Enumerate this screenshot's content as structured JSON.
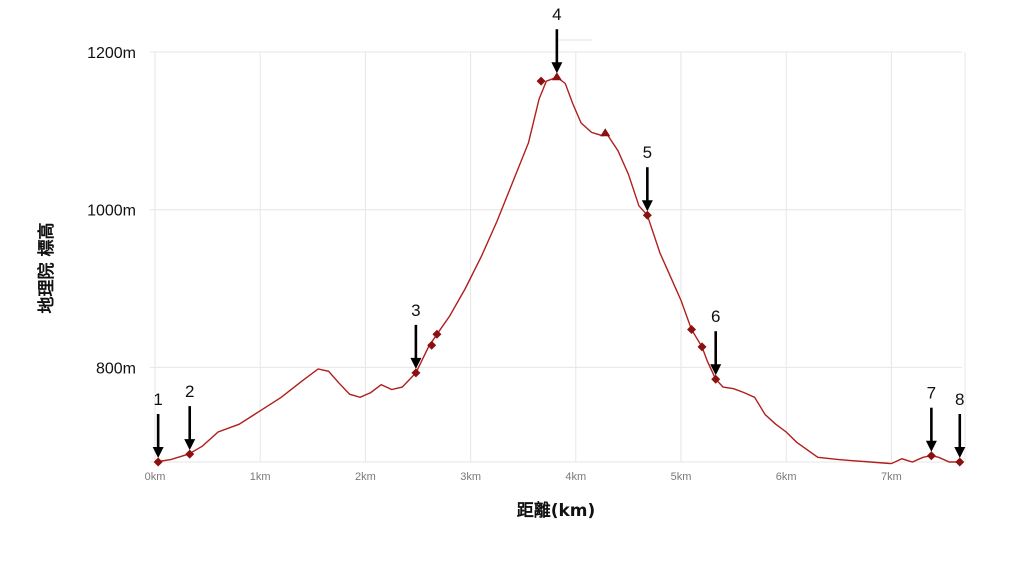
{
  "chart_data": {
    "type": "line",
    "title": "",
    "xlabel": "距離(km)",
    "ylabel": "地理院 標高",
    "xlim": [
      0,
      7.7
    ],
    "ylim": [
      680,
      1200
    ],
    "x_ticks": [
      0,
      1,
      2,
      3,
      4,
      5,
      6,
      7
    ],
    "x_tick_labels": [
      "0km",
      "1km",
      "2km",
      "3km",
      "4km",
      "5km",
      "6km",
      "7km"
    ],
    "y_ticks": [
      800,
      1000,
      1200
    ],
    "y_tick_labels": [
      "800m",
      "1000m",
      "1200m"
    ],
    "grid": true,
    "line_color": "#b01e1e",
    "marker_color": "#8b1010",
    "series": [
      {
        "x": [
          0,
          0.15,
          0.32,
          0.45,
          0.6,
          0.8,
          1.0,
          1.2,
          1.4,
          1.55,
          1.65,
          1.75,
          1.85,
          1.95,
          2.05,
          2.15,
          2.25,
          2.35,
          2.48,
          2.6,
          2.68,
          2.8,
          2.95,
          3.1,
          3.25,
          3.4,
          3.55,
          3.65,
          3.72,
          3.82,
          3.9,
          3.97,
          4.05,
          4.15,
          4.25,
          4.3,
          4.4,
          4.5,
          4.6,
          4.68,
          4.8,
          4.9,
          5.0,
          5.1,
          5.2,
          5.25,
          5.33,
          5.4,
          5.5,
          5.6,
          5.7,
          5.8,
          5.9,
          6.0,
          6.1,
          6.3,
          6.5,
          6.6,
          6.8,
          7.0,
          7.1,
          7.2,
          7.3,
          7.38,
          7.45,
          7.55,
          7.65
        ],
        "y": [
          680,
          683,
          690,
          700,
          718,
          728,
          745,
          762,
          783,
          798,
          795,
          780,
          766,
          762,
          768,
          778,
          772,
          775,
          793,
          826,
          842,
          865,
          900,
          940,
          985,
          1035,
          1085,
          1140,
          1163,
          1168,
          1160,
          1135,
          1110,
          1098,
          1094,
          1095,
          1075,
          1045,
          1005,
          993,
          945,
          915,
          885,
          848,
          826,
          808,
          785,
          775,
          773,
          768,
          762,
          740,
          728,
          718,
          705,
          686,
          683,
          682,
          680,
          678,
          684,
          680,
          686,
          688,
          686,
          680,
          680
        ]
      }
    ],
    "waypoints": [
      {
        "label": "1",
        "x": 0.03,
        "y": 680
      },
      {
        "label": "2",
        "x": 0.33,
        "y": 690
      },
      {
        "label": "3",
        "x": 2.48,
        "y": 793
      },
      {
        "label": "4",
        "x": 3.82,
        "y": 1168
      },
      {
        "label": "5",
        "x": 4.68,
        "y": 993
      },
      {
        "label": "6",
        "x": 5.33,
        "y": 785
      },
      {
        "label": "7",
        "x": 7.38,
        "y": 688
      },
      {
        "label": "8",
        "x": 7.65,
        "y": 680
      }
    ],
    "markers": [
      {
        "shape": "diamond",
        "x": 0.03,
        "y": 680
      },
      {
        "shape": "diamond",
        "x": 0.33,
        "y": 690
      },
      {
        "shape": "diamond",
        "x": 2.48,
        "y": 793
      },
      {
        "shape": "diamond",
        "x": 2.63,
        "y": 828
      },
      {
        "shape": "diamond",
        "x": 2.68,
        "y": 842
      },
      {
        "shape": "diamond",
        "x": 3.67,
        "y": 1163
      },
      {
        "shape": "triangle",
        "x": 3.82,
        "y": 1168
      },
      {
        "shape": "triangle",
        "x": 4.28,
        "y": 1097
      },
      {
        "shape": "diamond",
        "x": 4.68,
        "y": 993
      },
      {
        "shape": "diamond",
        "x": 5.1,
        "y": 848
      },
      {
        "shape": "diamond",
        "x": 5.2,
        "y": 826
      },
      {
        "shape": "diamond",
        "x": 5.33,
        "y": 785
      },
      {
        "shape": "diamond",
        "x": 7.38,
        "y": 688
      },
      {
        "shape": "diamond",
        "x": 7.65,
        "y": 680
      }
    ]
  }
}
